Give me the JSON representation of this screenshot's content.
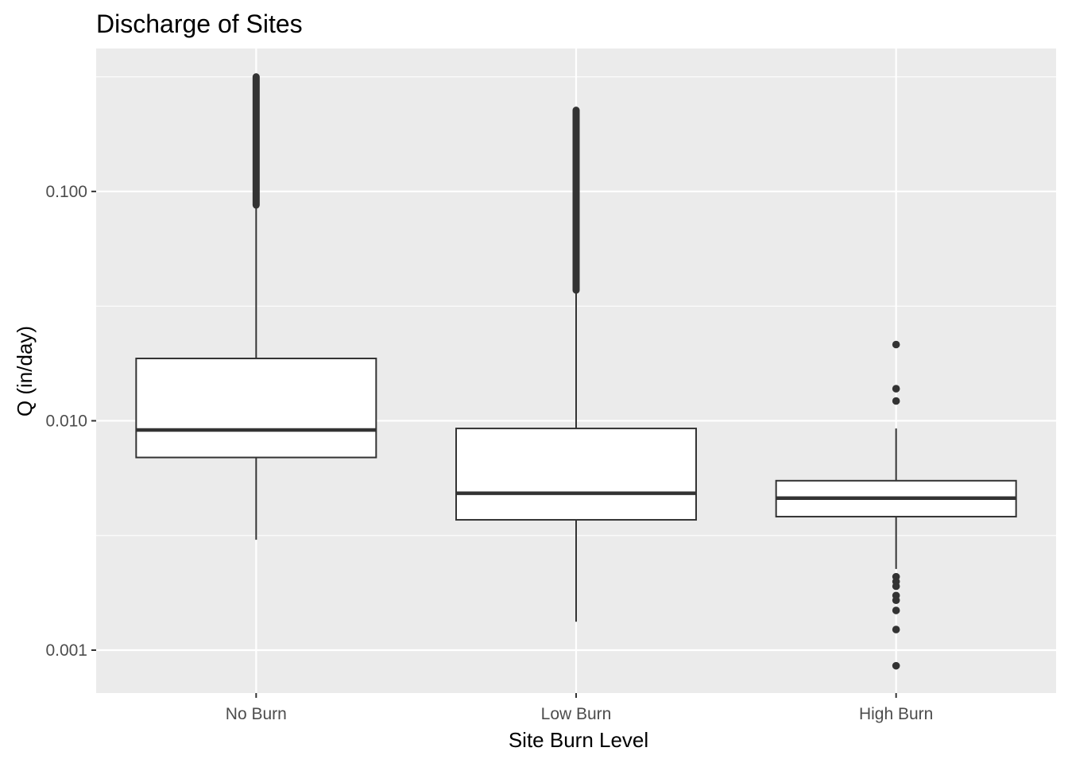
{
  "chart_data": {
    "type": "boxplot",
    "title": "Discharge of Sites",
    "xlabel": "Site Burn Level",
    "ylabel": "Q (in/day)",
    "y_scale": "log10",
    "ylim": [
      0.00065,
      0.42
    ],
    "y_ticks": [
      {
        "value": 0.001,
        "label": "0.001"
      },
      {
        "value": 0.01,
        "label": "0.010"
      },
      {
        "value": 0.1,
        "label": "0.100"
      }
    ],
    "y_minor_ticks": [
      0.00316,
      0.0316,
      0.316
    ],
    "grid": true,
    "legend": "none",
    "colors": {
      "panel": "#ebebeb",
      "grid": "#ffffff",
      "box_fill": "#ffffff",
      "box_line": "#333333",
      "tick_text": "#4d4d4d"
    },
    "categories": [
      "No Burn",
      "Low Burn",
      "High Burn"
    ],
    "boxes": [
      {
        "name": "No Burn",
        "whisker_low": 0.00303,
        "q1": 0.00692,
        "median": 0.00912,
        "q3": 0.0187,
        "whisker_high": 0.0872,
        "outlier_range": [
          0.0872,
          0.316
        ],
        "outliers": []
      },
      {
        "name": "Low Burn",
        "whisker_low": 0.00133,
        "q1": 0.0037,
        "median": 0.00483,
        "q3": 0.00926,
        "whisker_high": 0.0371,
        "outlier_range": [
          0.0371,
          0.226
        ],
        "outliers": []
      },
      {
        "name": "High Burn",
        "whisker_low": 0.00226,
        "q1": 0.00382,
        "median": 0.0046,
        "q3": 0.00548,
        "whisker_high": 0.00926,
        "outlier_range": null,
        "outliers": [
          0.0215,
          0.0138,
          0.0122,
          0.00209,
          0.00199,
          0.0019,
          0.00173,
          0.00165,
          0.00149,
          0.00123,
          0.000855
        ]
      }
    ]
  }
}
